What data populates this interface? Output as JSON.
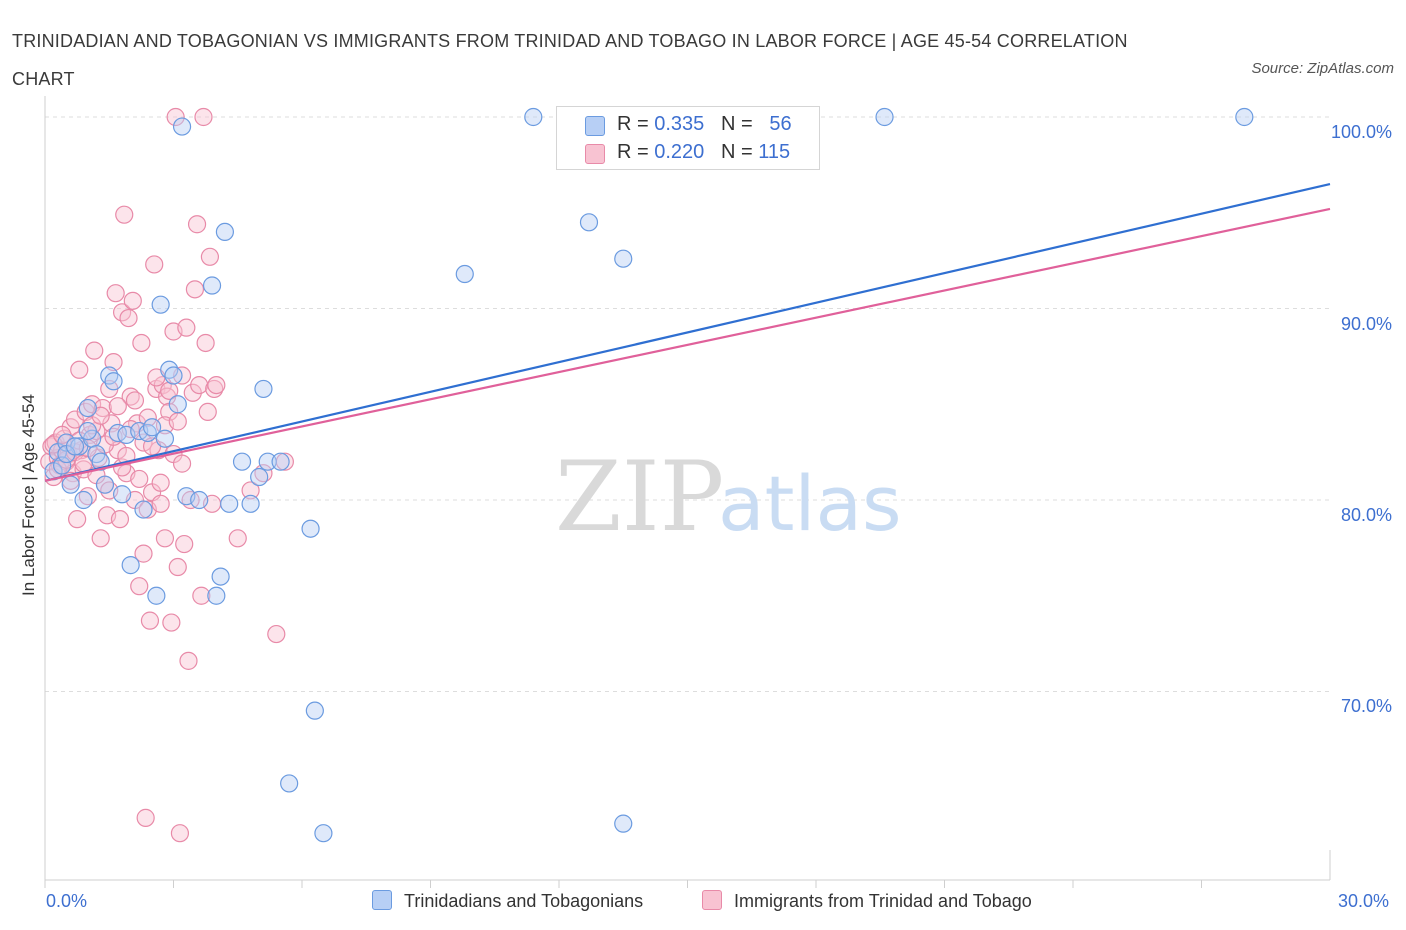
{
  "title": "TRINIDADIAN AND TOBAGONIAN VS IMMIGRANTS FROM TRINIDAD AND TOBAGO IN LABOR FORCE | AGE 45-54 CORRELATION CHART",
  "source": "Source: ZipAtlas.com",
  "watermark": {
    "zip": "ZIP",
    "atlas": "atlas"
  },
  "colors": {
    "blue_fill": "#b7cff5",
    "blue_stroke": "#6b9be0",
    "blue_line": "#2f6fd1",
    "pink_fill": "#f8c3d2",
    "pink_stroke": "#e88aa8",
    "pink_line": "#e0609a",
    "tick_text": "#3d6fd0",
    "grid": "#dddddd"
  },
  "legend": {
    "rows": [
      {
        "r_label": "R = ",
        "r_value": "0.335",
        "n_label": "N = ",
        "n_value": "56",
        "color": "blue"
      },
      {
        "r_label": "R = ",
        "r_value": "0.220",
        "n_label": "N = ",
        "n_value": "115",
        "color": "pink"
      }
    ]
  },
  "chart_data": {
    "type": "scatter",
    "title": "TRINIDADIAN AND TOBAGONIAN VS IMMIGRANTS FROM TRINIDAD AND TOBAGO IN LABOR FORCE | AGE 45-54 CORRELATION CHART",
    "xlabel": "",
    "ylabel": "In Labor Force | Age 45-54",
    "xlim": [
      0,
      30
    ],
    "ylim": [
      61,
      100
    ],
    "x_tick_labels": [
      "0.0%",
      "30.0%"
    ],
    "y_ticks": [
      70,
      80,
      90,
      100
    ],
    "y_tick_labels": [
      "70.0%",
      "80.0%",
      "90.0%",
      "100.0%"
    ],
    "grid": true,
    "legend_position": "bottom",
    "series": [
      {
        "name": "Trinidadians and Tobagonians",
        "color": "blue",
        "trend": {
          "x": [
            0,
            30
          ],
          "y": [
            81.0,
            96.5
          ]
        },
        "points": [
          [
            0.2,
            81.5
          ],
          [
            0.3,
            82.5
          ],
          [
            0.4,
            81.8
          ],
          [
            0.5,
            83.0
          ],
          [
            0.6,
            80.8
          ],
          [
            0.8,
            82.8
          ],
          [
            0.9,
            80.0
          ],
          [
            1.0,
            84.8
          ],
          [
            1.1,
            83.2
          ],
          [
            1.2,
            82.4
          ],
          [
            1.3,
            82.0
          ],
          [
            1.4,
            80.8
          ],
          [
            1.5,
            86.5
          ],
          [
            1.6,
            86.2
          ],
          [
            1.7,
            83.5
          ],
          [
            1.8,
            80.3
          ],
          [
            1.9,
            83.4
          ],
          [
            2.0,
            76.6
          ],
          [
            2.2,
            83.6
          ],
          [
            2.3,
            79.5
          ],
          [
            2.4,
            83.5
          ],
          [
            2.5,
            83.8
          ],
          [
            2.6,
            75.0
          ],
          [
            2.7,
            90.2
          ],
          [
            2.8,
            83.2
          ],
          [
            2.9,
            86.8
          ],
          [
            3.0,
            86.5
          ],
          [
            3.1,
            85.0
          ],
          [
            3.2,
            99.5
          ],
          [
            3.3,
            80.2
          ],
          [
            3.6,
            80.0
          ],
          [
            3.9,
            91.2
          ],
          [
            4.0,
            75.0
          ],
          [
            4.1,
            76.0
          ],
          [
            4.2,
            94.0
          ],
          [
            4.3,
            79.8
          ],
          [
            4.6,
            82.0
          ],
          [
            4.8,
            79.8
          ],
          [
            5.0,
            81.2
          ],
          [
            5.1,
            85.8
          ],
          [
            5.2,
            82.0
          ],
          [
            5.5,
            82.0
          ],
          [
            5.7,
            65.2
          ],
          [
            6.2,
            78.5
          ],
          [
            6.3,
            69.0
          ],
          [
            6.5,
            62.6
          ],
          [
            9.8,
            91.8
          ],
          [
            11.4,
            100.0
          ],
          [
            12.7,
            94.5
          ],
          [
            13.5,
            63.1
          ],
          [
            13.5,
            92.6
          ],
          [
            19.6,
            100.0
          ],
          [
            28.0,
            100.0
          ],
          [
            0.5,
            82.4
          ],
          [
            0.7,
            82.8
          ],
          [
            1.0,
            83.6
          ]
        ]
      },
      {
        "name": "Immigrants from Trinidad and Tobago",
        "color": "pink",
        "trend": {
          "x": [
            0,
            30
          ],
          "y": [
            81.0,
            95.2
          ]
        },
        "points": [
          [
            0.1,
            82.0
          ],
          [
            0.15,
            82.8
          ],
          [
            0.2,
            81.2
          ],
          [
            0.25,
            83.0
          ],
          [
            0.3,
            82.2
          ],
          [
            0.35,
            81.8
          ],
          [
            0.4,
            82.6
          ],
          [
            0.45,
            83.2
          ],
          [
            0.5,
            82.0
          ],
          [
            0.55,
            82.4
          ],
          [
            0.6,
            83.8
          ],
          [
            0.65,
            81.4
          ],
          [
            0.7,
            84.2
          ],
          [
            0.75,
            79.0
          ],
          [
            0.8,
            86.8
          ],
          [
            0.85,
            82.6
          ],
          [
            0.9,
            81.6
          ],
          [
            0.95,
            84.6
          ],
          [
            1.0,
            80.2
          ],
          [
            1.05,
            83.4
          ],
          [
            1.1,
            85.0
          ],
          [
            1.15,
            87.8
          ],
          [
            1.2,
            83.6
          ],
          [
            1.25,
            82.2
          ],
          [
            1.3,
            78.0
          ],
          [
            1.35,
            84.8
          ],
          [
            1.4,
            80.8
          ],
          [
            1.45,
            79.2
          ],
          [
            1.5,
            85.8
          ],
          [
            1.55,
            84.0
          ],
          [
            1.6,
            87.2
          ],
          [
            1.65,
            90.8
          ],
          [
            1.7,
            82.6
          ],
          [
            1.75,
            79.0
          ],
          [
            1.8,
            89.8
          ],
          [
            1.85,
            94.9
          ],
          [
            1.9,
            81.4
          ],
          [
            1.95,
            89.5
          ],
          [
            2.0,
            85.4
          ],
          [
            2.05,
            90.4
          ],
          [
            2.1,
            80.0
          ],
          [
            2.15,
            84.0
          ],
          [
            2.2,
            75.5
          ],
          [
            2.25,
            88.2
          ],
          [
            2.3,
            77.2
          ],
          [
            2.35,
            63.4
          ],
          [
            2.4,
            79.5
          ],
          [
            2.45,
            73.7
          ],
          [
            2.5,
            80.4
          ],
          [
            2.55,
            92.3
          ],
          [
            2.6,
            85.8
          ],
          [
            2.65,
            82.6
          ],
          [
            2.7,
            79.8
          ],
          [
            2.75,
            86.0
          ],
          [
            2.8,
            78.0
          ],
          [
            2.85,
            85.4
          ],
          [
            2.9,
            84.6
          ],
          [
            2.95,
            73.6
          ],
          [
            3.0,
            88.8
          ],
          [
            3.05,
            100.0
          ],
          [
            3.1,
            76.5
          ],
          [
            3.15,
            62.6
          ],
          [
            3.2,
            86.5
          ],
          [
            3.25,
            77.7
          ],
          [
            3.3,
            89.0
          ],
          [
            3.35,
            71.6
          ],
          [
            3.4,
            80.0
          ],
          [
            3.45,
            85.6
          ],
          [
            3.5,
            91.0
          ],
          [
            3.55,
            94.4
          ],
          [
            3.6,
            86.0
          ],
          [
            3.65,
            75.0
          ],
          [
            3.7,
            100.0
          ],
          [
            3.75,
            88.2
          ],
          [
            3.8,
            84.6
          ],
          [
            3.85,
            92.7
          ],
          [
            3.9,
            79.8
          ],
          [
            3.95,
            85.8
          ],
          [
            4.0,
            86.0
          ],
          [
            4.5,
            78.0
          ],
          [
            4.8,
            80.5
          ],
          [
            5.1,
            81.4
          ],
          [
            5.4,
            73.0
          ],
          [
            5.6,
            82.0
          ],
          [
            0.2,
            82.9
          ],
          [
            0.3,
            81.6
          ],
          [
            0.4,
            83.4
          ],
          [
            0.5,
            82.1
          ],
          [
            0.6,
            81.0
          ],
          [
            0.7,
            82.5
          ],
          [
            0.8,
            83.1
          ],
          [
            0.9,
            81.9
          ],
          [
            1.0,
            82.7
          ],
          [
            1.1,
            83.9
          ],
          [
            1.2,
            81.3
          ],
          [
            1.3,
            84.4
          ],
          [
            1.4,
            82.9
          ],
          [
            1.5,
            80.5
          ],
          [
            1.6,
            83.3
          ],
          [
            1.7,
            84.9
          ],
          [
            1.8,
            81.7
          ],
          [
            1.9,
            82.3
          ],
          [
            2.0,
            83.7
          ],
          [
            2.1,
            85.2
          ],
          [
            2.2,
            81.1
          ],
          [
            2.3,
            83.0
          ],
          [
            2.4,
            84.3
          ],
          [
            2.5,
            82.8
          ],
          [
            2.6,
            86.4
          ],
          [
            2.7,
            80.9
          ],
          [
            2.8,
            83.9
          ],
          [
            2.9,
            85.7
          ],
          [
            3.0,
            82.4
          ],
          [
            3.1,
            84.1
          ],
          [
            3.2,
            81.9
          ]
        ]
      }
    ]
  }
}
